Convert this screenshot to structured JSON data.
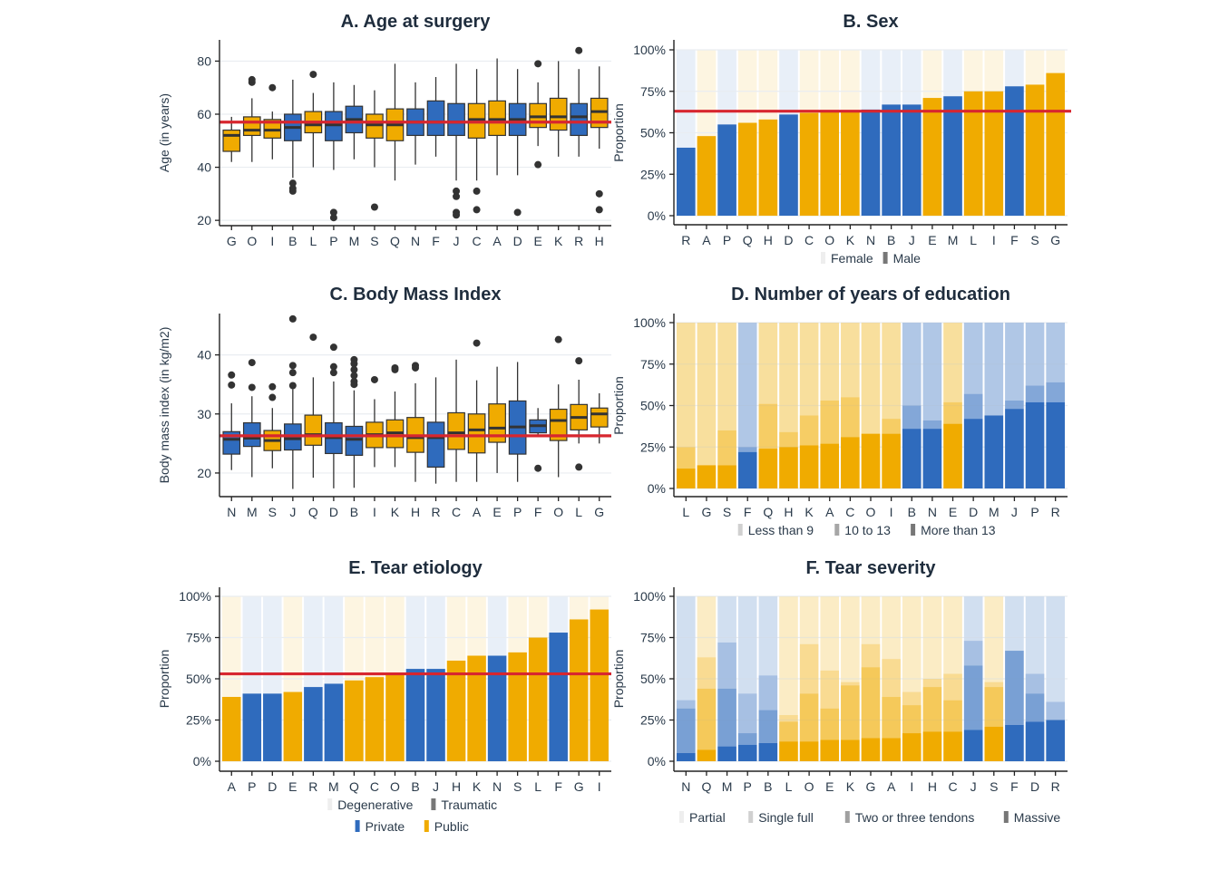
{
  "colors": {
    "private": "#2f6bbd",
    "public": "#f0ab00",
    "private_bg": "#e8eff8",
    "public_bg": "#fdf5e1",
    "ref_line": "#d7262f",
    "grid": "#e9edf1",
    "axis": "#222222",
    "outlier": "#333333"
  },
  "chart_data": [
    {
      "id": "A",
      "type": "box",
      "title": "A. Age at surgery",
      "ylabel": "Age (in years)",
      "ylim": [
        18,
        88
      ],
      "yticks": [
        20,
        40,
        60,
        80
      ],
      "ref_line": 57,
      "categories": [
        "G",
        "O",
        "I",
        "B",
        "L",
        "P",
        "M",
        "S",
        "Q",
        "N",
        "F",
        "J",
        "C",
        "A",
        "D",
        "E",
        "K",
        "R",
        "H"
      ],
      "sector": [
        "public",
        "public",
        "public",
        "private",
        "public",
        "private",
        "private",
        "public",
        "public",
        "private",
        "private",
        "private",
        "public",
        "public",
        "private",
        "public",
        "public",
        "private",
        "public"
      ],
      "boxes": [
        {
          "min": 42,
          "q1": 46,
          "median": 52,
          "q3": 54,
          "max": 59,
          "outliers": []
        },
        {
          "min": 42,
          "q1": 52,
          "median": 54,
          "q3": 59,
          "max": 66,
          "outliers": [
            72,
            73
          ]
        },
        {
          "min": 43,
          "q1": 51,
          "median": 54,
          "q3": 58,
          "max": 61,
          "outliers": [
            70
          ]
        },
        {
          "min": 36,
          "q1": 50,
          "median": 55,
          "q3": 60,
          "max": 73,
          "outliers": [
            34,
            32,
            31
          ]
        },
        {
          "min": 40,
          "q1": 53,
          "median": 56,
          "q3": 61,
          "max": 68,
          "outliers": [
            75
          ]
        },
        {
          "min": 39,
          "q1": 50,
          "median": 56,
          "q3": 61,
          "max": 72,
          "outliers": [
            23,
            21
          ]
        },
        {
          "min": 43,
          "q1": 53,
          "median": 58,
          "q3": 63,
          "max": 71,
          "outliers": []
        },
        {
          "min": 40,
          "q1": 51,
          "median": 56,
          "q3": 60,
          "max": 69,
          "outliers": [
            25
          ]
        },
        {
          "min": 35,
          "q1": 50,
          "median": 56,
          "q3": 62,
          "max": 79,
          "outliers": []
        },
        {
          "min": 41,
          "q1": 52,
          "median": 57,
          "q3": 62,
          "max": 72,
          "outliers": []
        },
        {
          "min": 44,
          "q1": 52,
          "median": 57,
          "q3": 65,
          "max": 74,
          "outliers": []
        },
        {
          "min": 35,
          "q1": 52,
          "median": 57,
          "q3": 64,
          "max": 79,
          "outliers": [
            31,
            29,
            23,
            22
          ]
        },
        {
          "min": 35,
          "q1": 51,
          "median": 58,
          "q3": 64,
          "max": 77,
          "outliers": [
            31,
            24
          ]
        },
        {
          "min": 37,
          "q1": 52,
          "median": 58,
          "q3": 65,
          "max": 81,
          "outliers": []
        },
        {
          "min": 37,
          "q1": 52,
          "median": 58,
          "q3": 64,
          "max": 77,
          "outliers": [
            23
          ]
        },
        {
          "min": 48,
          "q1": 55,
          "median": 59,
          "q3": 64,
          "max": 72,
          "outliers": [
            79,
            41
          ]
        },
        {
          "min": 44,
          "q1": 54,
          "median": 59,
          "q3": 66,
          "max": 80,
          "outliers": []
        },
        {
          "min": 44,
          "q1": 52,
          "median": 59,
          "q3": 64,
          "max": 77,
          "outliers": [
            84
          ]
        },
        {
          "min": 47,
          "q1": 55,
          "median": 61,
          "q3": 66,
          "max": 78,
          "outliers": [
            30,
            24
          ]
        }
      ],
      "legend": []
    },
    {
      "id": "B",
      "type": "stacked_bar",
      "title": "B. Sex",
      "ylabel": "Proportion",
      "ylim": [
        0,
        1
      ],
      "yticks": [
        "0%",
        "25%",
        "50%",
        "75%",
        "100%"
      ],
      "ref_line": 0.63,
      "categories": [
        "R",
        "A",
        "P",
        "Q",
        "H",
        "D",
        "C",
        "O",
        "K",
        "N",
        "B",
        "J",
        "E",
        "M",
        "L",
        "I",
        "F",
        "S",
        "G"
      ],
      "sector": [
        "private",
        "public",
        "private",
        "public",
        "public",
        "private",
        "public",
        "public",
        "public",
        "private",
        "private",
        "private",
        "public",
        "private",
        "public",
        "public",
        "private",
        "public",
        "public"
      ],
      "series": [
        {
          "name": "Female",
          "values": [
            0.59,
            0.52,
            0.45,
            0.44,
            0.42,
            0.39,
            0.38,
            0.37,
            0.37,
            0.36,
            0.33,
            0.33,
            0.29,
            0.28,
            0.25,
            0.25,
            0.22,
            0.21,
            0.14
          ]
        },
        {
          "name": "Male",
          "values": [
            0.41,
            0.48,
            0.55,
            0.56,
            0.58,
            0.61,
            0.62,
            0.63,
            0.63,
            0.64,
            0.67,
            0.67,
            0.71,
            0.72,
            0.75,
            0.75,
            0.78,
            0.79,
            0.86
          ]
        }
      ],
      "legend": [
        {
          "rows": [
            [
              "Female",
              "Male"
            ]
          ]
        }
      ]
    },
    {
      "id": "C",
      "type": "box",
      "title": "C. Body Mass Index",
      "ylabel": "Body mass index (in kg/m2)",
      "ylim": [
        16,
        47
      ],
      "yticks": [
        20,
        30,
        40
      ],
      "ref_line": 26.3,
      "categories": [
        "N",
        "M",
        "S",
        "J",
        "Q",
        "D",
        "B",
        "I",
        "K",
        "H",
        "R",
        "C",
        "A",
        "E",
        "P",
        "F",
        "O",
        "L",
        "G"
      ],
      "sector": [
        "private",
        "private",
        "public",
        "private",
        "public",
        "private",
        "private",
        "public",
        "public",
        "public",
        "private",
        "public",
        "public",
        "public",
        "private",
        "private",
        "public",
        "public",
        "public"
      ],
      "boxes": [
        {
          "min": 20.5,
          "q1": 23.2,
          "median": 25.7,
          "q3": 27.0,
          "max": 31.8,
          "outliers": [
            36.6,
            34.9
          ]
        },
        {
          "min": 19.3,
          "q1": 24.5,
          "median": 25.9,
          "q3": 28.5,
          "max": 33.0,
          "outliers": [
            38.7,
            34.5
          ]
        },
        {
          "min": 20.8,
          "q1": 23.8,
          "median": 25.5,
          "q3": 27.2,
          "max": 31.0,
          "outliers": [
            34.6,
            32.8
          ]
        },
        {
          "min": 17.3,
          "q1": 23.9,
          "median": 25.8,
          "q3": 28.3,
          "max": 34.2,
          "outliers": [
            46.1,
            38.2,
            37.0,
            34.8
          ]
        },
        {
          "min": 19.2,
          "q1": 24.7,
          "median": 26.5,
          "q3": 29.8,
          "max": 36.2,
          "outliers": [
            43.0
          ]
        },
        {
          "min": 17.4,
          "q1": 23.3,
          "median": 26.0,
          "q3": 28.5,
          "max": 35.5,
          "outliers": [
            41.3,
            38.0,
            37.0
          ]
        },
        {
          "min": 17.5,
          "q1": 23.0,
          "median": 25.7,
          "q3": 27.9,
          "max": 34.0,
          "outliers": [
            39.2,
            38.5,
            37.5,
            36.5,
            35.5,
            35.0
          ]
        },
        {
          "min": 21.0,
          "q1": 24.3,
          "median": 26.5,
          "q3": 28.6,
          "max": 32.5,
          "outliers": [
            35.8
          ]
        },
        {
          "min": 21.0,
          "q1": 24.3,
          "median": 26.8,
          "q3": 29.0,
          "max": 33.8,
          "outliers": [
            37.8,
            37.5
          ]
        },
        {
          "min": 18.5,
          "q1": 23.5,
          "median": 26.0,
          "q3": 29.4,
          "max": 35.2,
          "outliers": [
            38.2,
            37.8
          ]
        },
        {
          "min": 18.2,
          "q1": 21.0,
          "median": 26.0,
          "q3": 28.6,
          "max": 36.2,
          "outliers": []
        },
        {
          "min": 18.5,
          "q1": 24.0,
          "median": 26.8,
          "q3": 30.2,
          "max": 39.2,
          "outliers": []
        },
        {
          "min": 18.5,
          "q1": 23.4,
          "median": 27.3,
          "q3": 30.0,
          "max": 35.7,
          "outliers": [
            42.0
          ]
        },
        {
          "min": 20.0,
          "q1": 25.2,
          "median": 27.6,
          "q3": 31.7,
          "max": 38.0,
          "outliers": []
        },
        {
          "min": 18.5,
          "q1": 23.2,
          "median": 27.8,
          "q3": 32.2,
          "max": 38.8,
          "outliers": []
        },
        {
          "min": 26.2,
          "q1": 26.8,
          "median": 28.0,
          "q3": 29.0,
          "max": 31.0,
          "outliers": [
            20.8
          ]
        },
        {
          "min": 19.3,
          "q1": 25.5,
          "median": 28.9,
          "q3": 30.8,
          "max": 35.0,
          "outliers": [
            42.6
          ]
        },
        {
          "min": 25.0,
          "q1": 27.3,
          "median": 29.4,
          "q3": 31.6,
          "max": 35.8,
          "outliers": [
            39.0,
            21.0
          ]
        },
        {
          "min": 25.0,
          "q1": 27.8,
          "median": 30.0,
          "q3": 31.0,
          "max": 33.5,
          "outliers": []
        }
      ],
      "legend": []
    },
    {
      "id": "D",
      "type": "stacked_bar",
      "title": "D. Number of years of education",
      "ylabel": "Proportion",
      "ylim": [
        0,
        1
      ],
      "yticks": [
        "0%",
        "25%",
        "50%",
        "75%",
        "100%"
      ],
      "ref_line": null,
      "categories": [
        "L",
        "G",
        "S",
        "F",
        "Q",
        "H",
        "K",
        "A",
        "C",
        "O",
        "I",
        "B",
        "N",
        "E",
        "D",
        "M",
        "J",
        "P",
        "R"
      ],
      "sector": [
        "public",
        "public",
        "public",
        "private",
        "public",
        "public",
        "public",
        "public",
        "public",
        "public",
        "public",
        "private",
        "private",
        "public",
        "private",
        "private",
        "private",
        "private",
        "private"
      ],
      "series": [
        {
          "name": "More than 13",
          "values": [
            0.12,
            0.14,
            0.14,
            0.22,
            0.24,
            0.25,
            0.26,
            0.27,
            0.31,
            0.33,
            0.33,
            0.36,
            0.36,
            0.39,
            0.42,
            0.44,
            0.48,
            0.52,
            0.52
          ]
        },
        {
          "name": "10 to 13",
          "values": [
            0.13,
            0.0,
            0.21,
            0.03,
            0.27,
            0.09,
            0.18,
            0.26,
            0.24,
            0.0,
            0.09,
            0.14,
            0.05,
            0.13,
            0.15,
            0.0,
            0.05,
            0.1,
            0.12
          ]
        },
        {
          "name": "Less than 9",
          "values": [
            0.75,
            0.86,
            0.65,
            0.75,
            0.49,
            0.66,
            0.56,
            0.47,
            0.45,
            0.67,
            0.58,
            0.5,
            0.59,
            0.48,
            0.43,
            0.56,
            0.47,
            0.38,
            0.36
          ]
        }
      ],
      "legend": [
        {
          "rows": [
            [
              "Less than 9",
              "10 to 13",
              "More than 13"
            ]
          ]
        }
      ]
    },
    {
      "id": "E",
      "type": "stacked_bar",
      "title": "E. Tear etiology",
      "ylabel": "Proportion",
      "ylim": [
        0,
        1
      ],
      "yticks": [
        "0%",
        "25%",
        "50%",
        "75%",
        "100%"
      ],
      "ref_line": 0.53,
      "categories": [
        "A",
        "P",
        "D",
        "E",
        "R",
        "M",
        "Q",
        "C",
        "O",
        "B",
        "J",
        "H",
        "K",
        "N",
        "S",
        "L",
        "F",
        "G",
        "I"
      ],
      "sector": [
        "public",
        "private",
        "private",
        "public",
        "private",
        "private",
        "public",
        "public",
        "public",
        "private",
        "private",
        "public",
        "public",
        "private",
        "public",
        "public",
        "private",
        "public",
        "public"
      ],
      "series": [
        {
          "name": "Degenerative",
          "values": [
            0.61,
            0.59,
            0.59,
            0.58,
            0.55,
            0.53,
            0.51,
            0.49,
            0.47,
            0.44,
            0.44,
            0.39,
            0.36,
            0.36,
            0.34,
            0.25,
            0.22,
            0.14,
            0.08
          ]
        },
        {
          "name": "Traumatic",
          "values": [
            0.39,
            0.41,
            0.41,
            0.42,
            0.45,
            0.47,
            0.49,
            0.51,
            0.53,
            0.56,
            0.56,
            0.61,
            0.64,
            0.64,
            0.66,
            0.75,
            0.78,
            0.86,
            0.92
          ]
        }
      ],
      "legend": [
        {
          "rows": [
            [
              "Degenerative",
              "Traumatic"
            ],
            [
              "Private",
              "Public"
            ]
          ]
        }
      ]
    },
    {
      "id": "F",
      "type": "stacked_bar",
      "title": "F. Tear severity",
      "ylabel": "Proportion",
      "ylim": [
        0,
        1
      ],
      "yticks": [
        "0%",
        "25%",
        "50%",
        "75%",
        "100%"
      ],
      "ref_line": null,
      "categories": [
        "N",
        "Q",
        "M",
        "P",
        "B",
        "L",
        "O",
        "E",
        "K",
        "G",
        "A",
        "I",
        "H",
        "C",
        "J",
        "S",
        "F",
        "D",
        "R"
      ],
      "sector": [
        "private",
        "public",
        "private",
        "private",
        "private",
        "public",
        "public",
        "public",
        "public",
        "public",
        "public",
        "public",
        "public",
        "public",
        "private",
        "public",
        "private",
        "private",
        "private"
      ],
      "series": [
        {
          "name": "Massive",
          "values": [
            0.05,
            0.07,
            0.09,
            0.1,
            0.11,
            0.12,
            0.12,
            0.13,
            0.13,
            0.14,
            0.14,
            0.17,
            0.18,
            0.18,
            0.19,
            0.21,
            0.22,
            0.24,
            0.25
          ]
        },
        {
          "name": "Two or three tendons",
          "values": [
            0.27,
            0.37,
            0.35,
            0.07,
            0.2,
            0.12,
            0.29,
            0.19,
            0.33,
            0.43,
            0.25,
            0.17,
            0.27,
            0.19,
            0.39,
            0.24,
            0.45,
            0.17,
            0.0
          ]
        },
        {
          "name": "Single full",
          "values": [
            0.05,
            0.19,
            0.28,
            0.24,
            0.21,
            0.04,
            0.3,
            0.23,
            0.02,
            0.14,
            0.23,
            0.08,
            0.05,
            0.16,
            0.15,
            0.03,
            0.0,
            0.12,
            0.11
          ]
        },
        {
          "name": "Partial",
          "values": [
            0.63,
            0.37,
            0.28,
            0.59,
            0.48,
            0.72,
            0.29,
            0.45,
            0.52,
            0.29,
            0.38,
            0.58,
            0.5,
            0.47,
            0.27,
            0.52,
            0.33,
            0.47,
            0.64
          ]
        }
      ],
      "legend": [
        {
          "rows": [
            [
              "Partial",
              "Single full",
              "Two or three tendons",
              "Massive"
            ]
          ]
        }
      ]
    }
  ]
}
